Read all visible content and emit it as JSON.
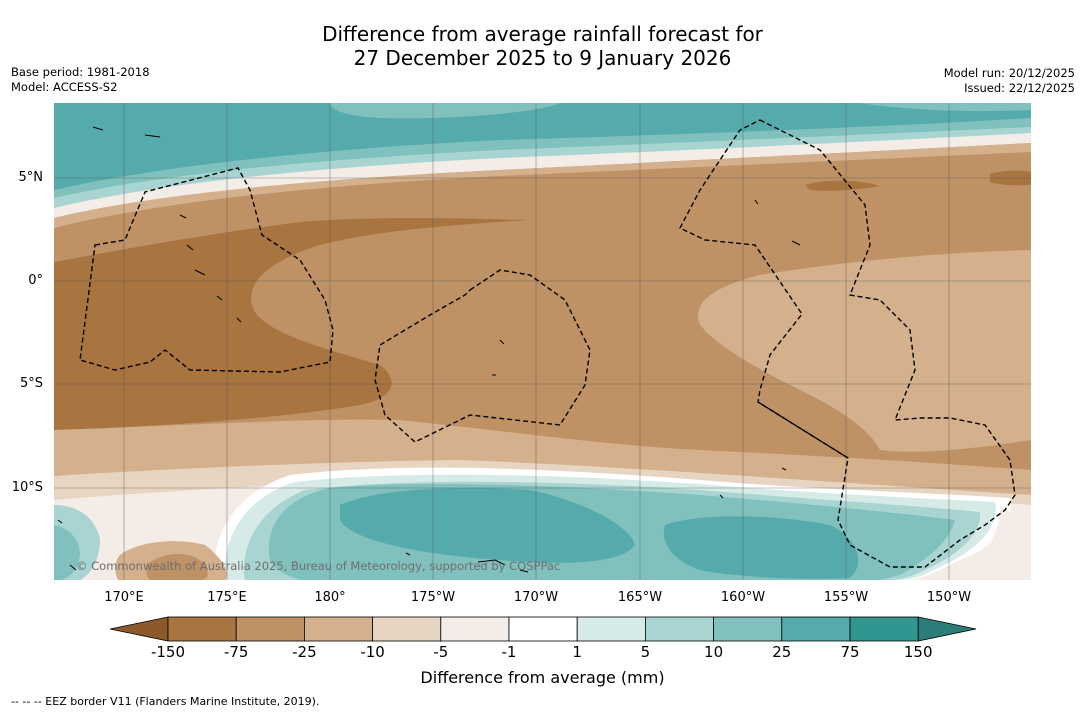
{
  "title": {
    "line1": "Difference from average rainfall forecast for",
    "line2": "27 December 2025 to 9 January 2026"
  },
  "meta_left": {
    "base_period": "Base period: 1981-2018",
    "model": "Model: ACCESS-S2"
  },
  "meta_right": {
    "model_run": "Model run: 20/12/2025",
    "issued": "Issued: 22/12/2025"
  },
  "lat_labels": [
    "5°N",
    "0°",
    "5°S",
    "10°S"
  ],
  "lon_labels": [
    "170°E",
    "175°E",
    "180°",
    "175°W",
    "170°W",
    "165°W",
    "160°W",
    "155°W",
    "150°W"
  ],
  "colorbar": {
    "ticks": [
      "-150",
      "-75",
      "-25",
      "-10",
      "-5",
      "-1",
      "1",
      "5",
      "10",
      "25",
      "75",
      "150"
    ],
    "colors": [
      "#8c5a2a",
      "#a87440",
      "#bf9265",
      "#d4b08c",
      "#e7d5c2",
      "#f4ece6",
      "#ffffff",
      "#d6ebe8",
      "#a8d5d1",
      "#80c0bd",
      "#55aaab",
      "#31968f",
      "#2a7d79"
    ],
    "title": "Difference from average (mm)"
  },
  "copyright": "© Commonwealth of Australia 2025, Bureau of Meteorology, supported by COSPPac",
  "footnote": "--  --  -- EEZ border V11 (Flanders Marine Institute, 2019)."
}
